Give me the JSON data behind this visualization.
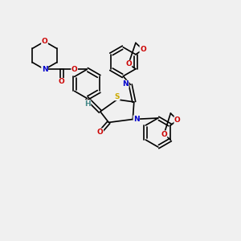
{
  "background_color": "#f0f0f0",
  "atom_colors": {
    "C": "#000000",
    "N": "#0000cc",
    "O": "#cc0000",
    "S": "#ccaa00",
    "H": "#448888"
  },
  "bond_color": "#000000",
  "bond_width": 1.2,
  "figsize": [
    3.0,
    3.0
  ],
  "dpi": 100
}
